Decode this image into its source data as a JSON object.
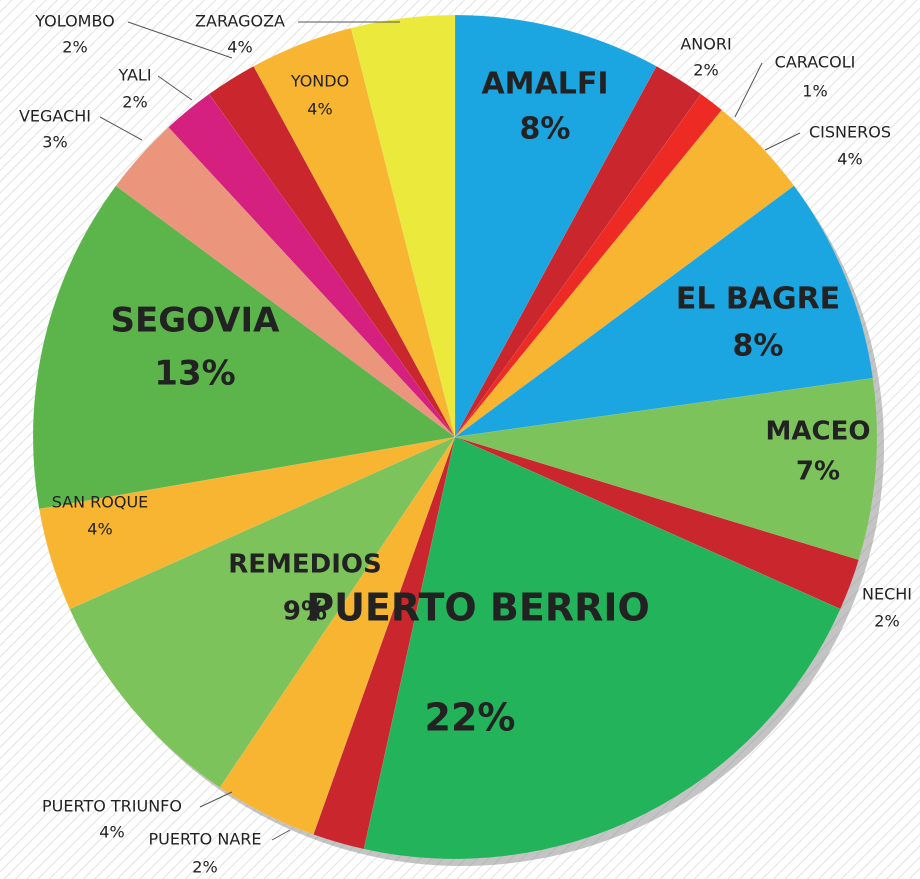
{
  "chart_data": {
    "type": "pie",
    "categories": [
      "AMALFI",
      "ANORI",
      "CARACOLI",
      "CISNEROS",
      "EL BAGRE",
      "MACEO",
      "NECHI",
      "PUERTO BERRIO",
      "PUERTO NARE",
      "PUERTO TRIUNFO",
      "REMEDIOS",
      "SAN ROQUE",
      "SEGOVIA",
      "VEGACHI",
      "YALI",
      "YOLOMBO",
      "YONDO",
      "ZARAGOZA"
    ],
    "values": [
      8,
      2,
      1,
      4,
      8,
      7,
      2,
      22,
      2,
      4,
      9,
      4,
      13,
      3,
      2,
      2,
      4,
      4
    ],
    "value_labels": [
      "8%",
      "2%",
      "1%",
      "4%",
      "8%",
      "7%",
      "2%",
      "22%",
      "2%",
      "4%",
      "9%",
      "4%",
      "13%",
      "3%",
      "2%",
      "2%",
      "4%",
      "4%"
    ],
    "colors": [
      "#1ba6e1",
      "#c9262d",
      "#ee2a24",
      "#f8b531",
      "#1ba6e1",
      "#7dc35b",
      "#c9262d",
      "#23b45b",
      "#c9262d",
      "#f8b531",
      "#7dc35b",
      "#f8b531",
      "#5bb54a",
      "#ea957c",
      "#d6207f",
      "#c9262d",
      "#f8b531",
      "#ebe93c"
    ]
  }
}
